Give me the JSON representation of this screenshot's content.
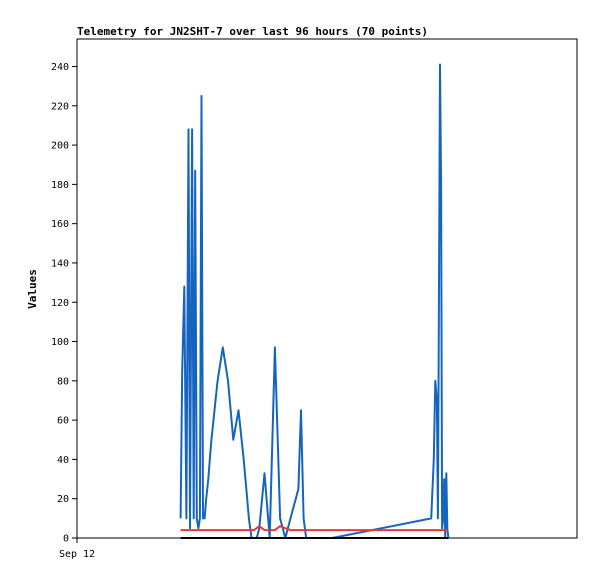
{
  "chart_data": {
    "type": "line",
    "title": "Telemetry for JN2SHT-7 over last 96 hours (70 points)",
    "xlabel": "",
    "ylabel": "Values",
    "ylim": [
      0,
      254
    ],
    "yticks": [
      0,
      20,
      40,
      60,
      80,
      100,
      120,
      140,
      160,
      180,
      200,
      220,
      240
    ],
    "xlim": [
      0,
      96
    ],
    "xticks": [
      {
        "x": 0,
        "label": "Sep 12"
      }
    ],
    "grid": false,
    "legend": "none",
    "series": [
      {
        "color": "#1565c0",
        "x": [
          19.9,
          20.2,
          20.6,
          21.0,
          21.4,
          21.7,
          22.1,
          22.4,
          22.7,
          23.0,
          23.3,
          23.6,
          23.9,
          24.2,
          24.5,
          24.8,
          25.2,
          25.5,
          25.8,
          26.2,
          26.6,
          27.0,
          28.0,
          29.0,
          30.0,
          31.0,
          32.0,
          33.0,
          33.5,
          34.0,
          34.5,
          35.0,
          36.0,
          37.0,
          38.0,
          39.0,
          40.0,
          40.5,
          41.0,
          41.5,
          42.0,
          42.5,
          43.0,
          43.5,
          44.0,
          44.5,
          45.0,
          45.5,
          46.0,
          46.5,
          47.0,
          47.5,
          48.0,
          48.5,
          49.0,
          68.0,
          68.5,
          68.8,
          69.1,
          69.3,
          69.5,
          69.7,
          69.9,
          70.1,
          70.3,
          70.5,
          70.7,
          70.9,
          71.1,
          71.3
        ],
        "values": [
          10,
          85,
          128,
          10,
          208,
          5,
          208,
          10,
          187,
          10,
          5,
          10,
          225,
          10,
          10,
          20,
          30,
          40,
          50,
          60,
          70,
          80,
          97,
          80,
          50,
          65,
          40,
          10,
          0,
          0,
          0,
          5,
          33,
          0,
          97,
          10,
          0,
          5,
          10,
          15,
          20,
          25,
          65,
          10,
          0,
          0,
          0,
          0,
          0,
          0,
          0,
          0,
          0,
          0,
          0,
          10,
          40,
          80,
          70,
          10,
          128,
          241,
          180,
          5,
          10,
          30,
          0,
          33,
          5,
          0
        ]
      },
      {
        "color": "#e53935",
        "x": [
          19.9,
          33.0,
          34.0,
          35.0,
          36.0,
          37.0,
          38.0,
          39.0,
          40.0,
          41.0,
          42.0,
          71.3
        ],
        "values": [
          4,
          4,
          4,
          6,
          4,
          4,
          4,
          6,
          5,
          4,
          4,
          4
        ]
      },
      {
        "color": "#000000",
        "x": [
          19.9,
          71.3
        ],
        "values": [
          0,
          0
        ]
      }
    ]
  }
}
